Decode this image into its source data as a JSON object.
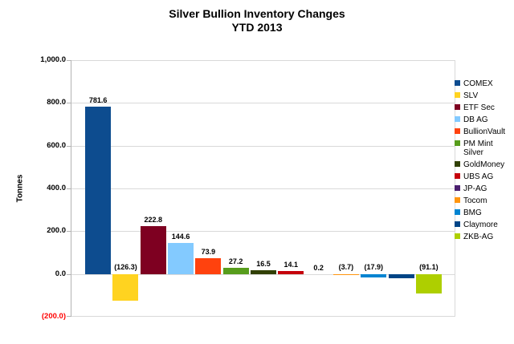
{
  "title": {
    "line1": "Silver Bullion Inventory Changes",
    "line2": "YTD 2013"
  },
  "y_axis": {
    "label": "Tonnes",
    "ticks": [
      {
        "label": "1,000.0",
        "value": 1000,
        "color": "#000000"
      },
      {
        "label": "800.0",
        "value": 800,
        "color": "#000000"
      },
      {
        "label": "600.0",
        "value": 600,
        "color": "#000000"
      },
      {
        "label": "400.0",
        "value": 400,
        "color": "#000000"
      },
      {
        "label": "200.0",
        "value": 200,
        "color": "#000000"
      },
      {
        "label": "0.0",
        "value": 0,
        "color": "#000000"
      },
      {
        "label": "(200.0)",
        "value": -200,
        "color": "#FF0000"
      }
    ]
  },
  "chart_data": {
    "type": "bar",
    "title": "Silver Bullion Inventory Changes",
    "subtitle": "YTD 2013",
    "xlabel": "",
    "ylabel": "Tonnes",
    "ylim": [
      -200,
      1000
    ],
    "grid": true,
    "legend_position": "right",
    "categories": [
      "COMEX",
      "SLV",
      "ETF Sec",
      "DB AG",
      "BullionVault",
      "PM Mint Silver",
      "GoldMoney",
      "UBS AG",
      "JP-AG",
      "Tocom",
      "BMG",
      "Claymore",
      "ZKB-AG"
    ],
    "values": [
      781.6,
      -126.3,
      222.8,
      144.6,
      73.9,
      27.2,
      16.5,
      14.1,
      0.2,
      -3.7,
      -17.9,
      -21,
      -91.1
    ],
    "data_labels": [
      "781.6",
      "(126.3)",
      "222.8",
      "144.6",
      "73.9",
      "27.2",
      "16.5",
      "14.1",
      "0.2",
      "(3.7)",
      "(17.9)",
      "",
      "(91.1)"
    ],
    "colors": [
      "#0D4C8F",
      "#FFD320",
      "#7E0021",
      "#83CAFF",
      "#FF420E",
      "#579D1C",
      "#314004",
      "#C5000B",
      "#4B1F6F",
      "#FF950E",
      "#0084D1",
      "#004586",
      "#AECF00"
    ]
  },
  "legend": {
    "items": [
      {
        "label": "COMEX",
        "color": "#0D4C8F"
      },
      {
        "label": "SLV",
        "color": "#FFD320"
      },
      {
        "label": "ETF Sec",
        "color": "#7E0021"
      },
      {
        "label": "DB AG",
        "color": "#83CAFF"
      },
      {
        "label": "BullionVault",
        "color": "#FF420E"
      },
      {
        "label": "PM Mint Silver",
        "color": "#579D1C"
      },
      {
        "label": "GoldMoney",
        "color": "#314004"
      },
      {
        "label": "UBS AG",
        "color": "#C5000B"
      },
      {
        "label": "JP-AG",
        "color": "#4B1F6F"
      },
      {
        "label": "Tocom",
        "color": "#FF950E"
      },
      {
        "label": "BMG",
        "color": "#0084D1"
      },
      {
        "label": "Claymore",
        "color": "#004586"
      },
      {
        "label": "ZKB-AG",
        "color": "#AECF00"
      }
    ]
  }
}
